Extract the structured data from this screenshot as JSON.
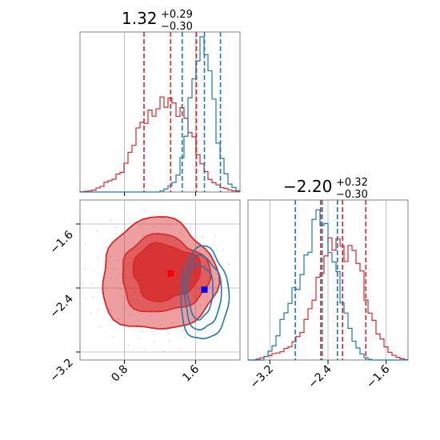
{
  "colors": {
    "red": "#d62728",
    "blue": "#1f77b4",
    "grid": "#b0b0b0",
    "frame": "#808080",
    "samples": "#c9c9ee"
  },
  "chart_data": [
    {
      "type": "histogram",
      "panel": "top-left",
      "title": {
        "value": "1.32",
        "plus": "+0.29",
        "minus": "−0.30"
      },
      "xlim": [
        0.3,
        2.1
      ],
      "x_ticks": [
        0.8,
        1.6
      ],
      "series": [
        {
          "color": "red",
          "quantiles": [
            1.02,
            1.32,
            1.61
          ],
          "x": [
            0.3,
            0.45,
            0.55,
            0.62,
            0.7,
            0.78,
            0.85,
            0.92,
            1.0,
            1.06,
            1.12,
            1.18,
            1.24,
            1.3,
            1.36,
            1.42,
            1.48,
            1.54,
            1.6,
            1.66,
            1.72,
            1.8,
            1.9,
            2.0,
            2.1
          ],
          "density": [
            0.0,
            0.01,
            0.04,
            0.07,
            0.09,
            0.14,
            0.22,
            0.35,
            0.45,
            0.48,
            0.5,
            0.55,
            0.58,
            0.6,
            0.55,
            0.52,
            0.5,
            0.4,
            0.3,
            0.2,
            0.12,
            0.06,
            0.03,
            0.01,
            0.0
          ]
        },
        {
          "color": "blue",
          "quantiles": [
            1.45,
            1.7,
            1.88
          ],
          "x": [
            1.2,
            1.3,
            1.35,
            1.4,
            1.45,
            1.5,
            1.55,
            1.6,
            1.63,
            1.66,
            1.69,
            1.72,
            1.75,
            1.78,
            1.81,
            1.85,
            1.9,
            1.95,
            2.0,
            2.1
          ],
          "density": [
            0.0,
            0.03,
            0.06,
            0.1,
            0.22,
            0.42,
            0.62,
            0.8,
            0.9,
            0.95,
            1.0,
            0.93,
            0.85,
            0.7,
            0.55,
            0.35,
            0.2,
            0.1,
            0.04,
            0.0
          ]
        }
      ]
    },
    {
      "type": "contour",
      "panel": "bottom-left",
      "xlim": [
        0.3,
        2.1
      ],
      "ylim": [
        -3.3,
        -1.3
      ],
      "x_ticks": [
        0.8,
        1.6
      ],
      "y_ticks": [
        -1.6,
        -2.4,
        -3.2
      ],
      "markers": [
        {
          "color": "red",
          "x": 1.32,
          "y": -2.22
        },
        {
          "color": "blue",
          "x": 1.7,
          "y": -2.42
        }
      ]
    },
    {
      "type": "histogram",
      "panel": "bottom-right",
      "title": {
        "value": "−2.20",
        "plus": "+0.32",
        "minus": "−0.30"
      },
      "xlim": [
        -3.5,
        -1.3
      ],
      "x_ticks": [
        -3.2,
        -2.4,
        -1.6
      ],
      "series": [
        {
          "color": "red",
          "quantiles": [
            -2.5,
            -2.2,
            -1.88
          ],
          "x": [
            -3.4,
            -3.2,
            -3.0,
            -2.9,
            -2.8,
            -2.7,
            -2.6,
            -2.5,
            -2.42,
            -2.35,
            -2.28,
            -2.2,
            -2.12,
            -2.05,
            -1.98,
            -1.9,
            -1.82,
            -1.75,
            -1.68,
            -1.6,
            -1.5,
            -1.4,
            -1.3
          ],
          "density": [
            0.0,
            0.03,
            0.06,
            0.1,
            0.15,
            0.25,
            0.4,
            0.55,
            0.7,
            0.75,
            0.78,
            0.7,
            0.68,
            0.72,
            0.65,
            0.45,
            0.3,
            0.22,
            0.15,
            0.08,
            0.03,
            0.01,
            0.0
          ]
        },
        {
          "color": "blue",
          "quantiles": [
            -2.85,
            -2.48,
            -2.27
          ],
          "x": [
            -3.3,
            -3.15,
            -3.05,
            -2.95,
            -2.85,
            -2.75,
            -2.65,
            -2.58,
            -2.52,
            -2.47,
            -2.42,
            -2.37,
            -2.32,
            -2.27,
            -2.2,
            -2.1,
            -2.0,
            -1.9,
            -1.8
          ],
          "density": [
            0.0,
            0.08,
            0.22,
            0.35,
            0.45,
            0.55,
            0.75,
            0.88,
            1.0,
            0.9,
            0.8,
            0.72,
            0.65,
            0.55,
            0.38,
            0.2,
            0.08,
            0.02,
            0.0
          ]
        }
      ]
    }
  ]
}
